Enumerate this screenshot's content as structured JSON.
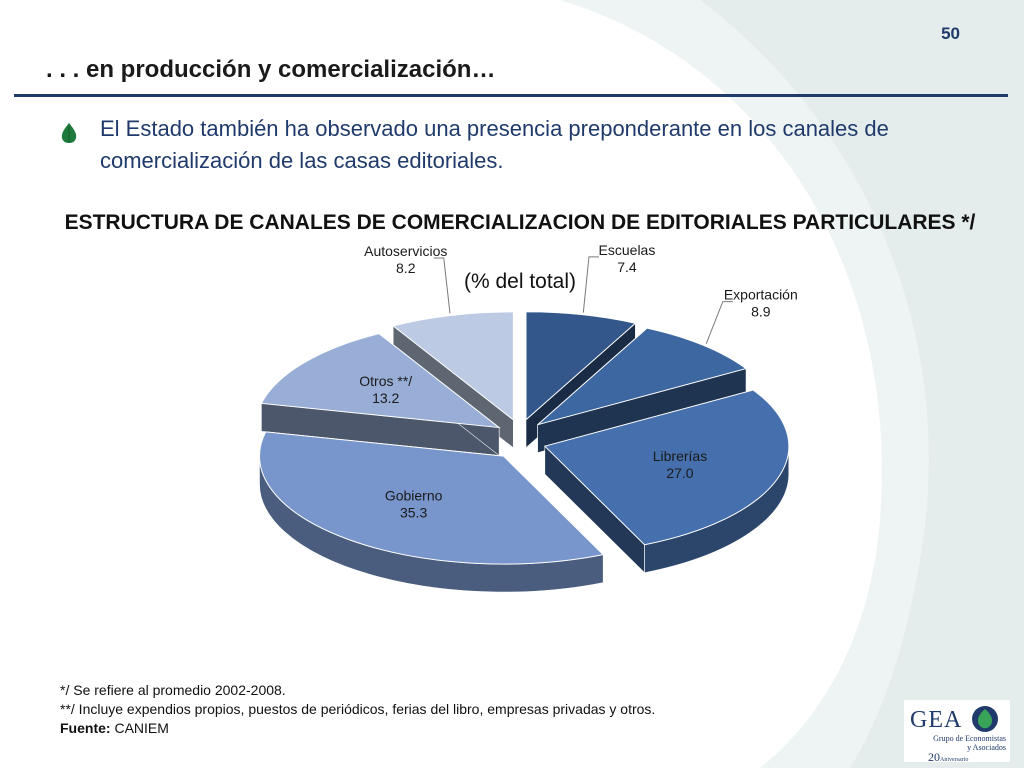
{
  "page_number": "50",
  "title": ". . . en producción y comercialización…",
  "bullet": "El Estado también ha observado una presencia preponderante en los canales de comercialización de las casas editoriales.",
  "chart_data": {
    "type": "pie",
    "title": "ESTRUCTURA DE CANALES DE COMERCIALIZACION DE EDITORIALES PARTICULARES */",
    "subtitle": "(% del total)",
    "categories": [
      "Escuelas",
      "Exportación",
      "Librerías",
      "Gobierno",
      "Otros **/",
      "Autoservicios"
    ],
    "values": [
      7.4,
      8.9,
      27.0,
      35.3,
      13.2,
      8.2
    ],
    "value_labels": [
      "7.4",
      "8.9",
      "27.0",
      "35.3",
      "13.2",
      "8.2"
    ],
    "colors": [
      "#33578a",
      "#3d67a0",
      "#4670ad",
      "#7896cc",
      "#99aed6",
      "#bccbe3"
    ],
    "exploded": true,
    "style": "3d"
  },
  "footnotes": {
    "note1": "*/ Se refiere al promedio 2002-2008.",
    "note2": "**/ Incluye expendios propios, puestos de periódicos, ferias del libro, empresas privadas y otros.",
    "source_label": "Fuente:",
    "source_value": "CANIEM"
  },
  "logo": {
    "name": "GEA",
    "line1": "Grupo de Economistas",
    "line2": "y Asociados",
    "anniversary": "20",
    "anniversary_word": "Aniversario"
  }
}
